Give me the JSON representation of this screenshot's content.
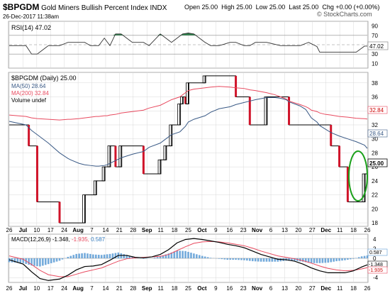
{
  "header": {
    "symbol": "$BPGDM",
    "name": "Gold Miners Bullish Percent Index",
    "exchange": "INDX",
    "date": "26-Dec-2017 11:38am",
    "open_label": "Open",
    "open": "25.00",
    "high_label": "High",
    "high": "25.00",
    "low_label": "Low",
    "low": "25.00",
    "last_label": "Last",
    "last": "25.00",
    "chg_label": "Chg",
    "chg": "+0.00 (+0.00%)",
    "watermark": "© StockCharts.com"
  },
  "colors": {
    "ma50": "#3a5a86",
    "ma200": "#e84a5f",
    "ohlc": "#000000",
    "down": "#d0142a",
    "rsi_fill": "#8a5a50",
    "rsi_fill_up": "#2e7d4a",
    "macd_hist": "#5b9bd5",
    "signal": "#e84a5f",
    "annotation": "#1aa01a",
    "grid": "#d8d8d8"
  },
  "rsi_panel": {
    "legend": "RSI(14) 47.02",
    "ticks": [
      "90",
      "70",
      "50",
      "30",
      "10"
    ],
    "last_label": "47.02"
  },
  "price_panel": {
    "legend_title": "$BPGDM (Daily) 25.00",
    "legend_ma50": "MA(50) 28.64",
    "legend_ma200": "MA(200) 32.84",
    "legend_volume": "Volume undef",
    "ticks": [
      "38",
      "36",
      "34",
      "32",
      "30",
      "28",
      "26",
      "24",
      "22",
      "20",
      "18"
    ],
    "last_price_label": "25.00",
    "ma200_label": "32.84",
    "ma50_label": "28.64"
  },
  "macd_panel": {
    "legend_name": "MACD(12,26,9)",
    "legend_macd": "-1.348,",
    "legend_signal": "-1.935,",
    "legend_hist": "0.587",
    "ticks": [
      "4",
      "2",
      "0",
      "-2",
      "-4"
    ],
    "hist_label": "0.587",
    "macd_label": "-1.348",
    "signal_label": "-1.935"
  },
  "x_axis": {
    "labels": [
      "26",
      "Jul",
      "10",
      "17",
      "24",
      "Aug",
      "7",
      "14",
      "21",
      "28",
      "Sep",
      "11",
      "18",
      "25",
      "Oct",
      "9",
      "16",
      "23",
      "Nov",
      "6",
      "13",
      "20",
      "27",
      "Dec",
      "11",
      "18",
      "26"
    ]
  },
  "chart_data": [
    {
      "type": "line",
      "panel": "RSI",
      "ylim": [
        0,
        100
      ],
      "reference_lines": [
        70,
        50,
        30
      ],
      "x_index": [
        0,
        6,
        8,
        10,
        14,
        18,
        21,
        27,
        29,
        32,
        34,
        36,
        38,
        40,
        44,
        48,
        50,
        54,
        58,
        62,
        64,
        66,
        70,
        72,
        75,
        79,
        81,
        84,
        86,
        88,
        92,
        97,
        99,
        104,
        107,
        110,
        111,
        115,
        118,
        121,
        124,
        127,
        128
      ],
      "series": [
        {
          "name": "RSI(14)",
          "values": [
            48,
            48,
            30,
            30,
            48,
            48,
            55,
            55,
            48,
            48,
            64,
            48,
            73,
            73,
            55,
            55,
            48,
            73,
            55,
            73,
            75,
            73,
            55,
            48,
            48,
            55,
            55,
            48,
            48,
            55,
            55,
            48,
            48,
            48,
            55,
            46,
            34,
            34,
            34,
            34,
            34,
            47,
            47
          ]
        }
      ]
    },
    {
      "type": "line",
      "panel": "price",
      "ylim": [
        17.5,
        39.5
      ],
      "x_index": [
        0,
        6,
        7,
        8,
        10,
        14,
        18,
        21,
        22,
        25,
        27,
        29,
        31,
        32,
        34,
        35,
        36,
        38,
        40,
        44,
        48,
        50,
        54,
        56,
        58,
        61,
        62,
        63,
        64,
        66,
        70,
        72,
        75,
        79,
        81,
        84,
        86,
        88,
        92,
        95,
        97,
        99,
        100,
        104,
        106,
        107,
        108,
        110,
        111,
        113,
        115,
        118,
        121,
        124,
        127,
        128
      ],
      "series": [
        {
          "name": "$BPGDM (Daily)",
          "values": [
            32,
            32,
            29,
            29,
            21,
            21,
            18,
            18,
            18,
            18,
            22,
            22,
            24,
            24,
            26,
            26,
            29,
            26,
            29,
            29,
            25,
            25,
            27,
            29,
            32,
            35,
            36,
            35,
            38,
            38,
            39,
            39,
            39,
            39,
            36,
            36,
            32,
            32,
            36,
            36,
            36,
            36,
            32,
            32,
            32,
            32,
            32,
            32,
            32,
            32,
            29,
            26,
            21,
            21,
            25,
            25
          ]
        },
        {
          "name": "MA(50)",
          "values": [
            32.5,
            32,
            31.6,
            31.2,
            30.6,
            29.4,
            28,
            27.2,
            27,
            26.5,
            26.3,
            26.2,
            26.1,
            26.1,
            26.2,
            26.3,
            26.5,
            26.9,
            27.3,
            27.8,
            28.2,
            28.8,
            29.4,
            30,
            30.6,
            31,
            31.4,
            31.8,
            32.4,
            32.8,
            33.3,
            33.8,
            34.3,
            34.6,
            34.9,
            35.2,
            35.4,
            35.6,
            35.9,
            35.9,
            35.8,
            35.6,
            35.3,
            34.7,
            34.2,
            33.6,
            33,
            32.4,
            31.9,
            31.4,
            30.9,
            30.4,
            30,
            29.6,
            29.1,
            28.64
          ]
        },
        {
          "name": "MA(200)",
          "values": [
            33.4,
            33.2,
            33.1,
            33,
            32.9,
            32.8,
            32.7,
            32.8,
            32.8,
            32.9,
            33,
            33.1,
            33.2,
            33.2,
            33.3,
            33.3,
            33.4,
            33.5,
            33.7,
            33.9,
            34.1,
            34.4,
            34.8,
            35.2,
            35.6,
            36,
            36.3,
            36.6,
            36.9,
            37.1,
            37.3,
            37.4,
            37.5,
            37.4,
            37.3,
            37.2,
            37,
            36.9,
            36.6,
            36.3,
            36,
            35.7,
            35.4,
            34.9,
            34.6,
            34.4,
            34.1,
            33.9,
            33.7,
            33.5,
            33.4,
            33.2,
            33.1,
            32.95,
            32.88,
            32.84
          ]
        }
      ]
    },
    {
      "type": "line",
      "panel": "MACD",
      "ylim": [
        -5,
        5
      ],
      "x_index": [
        0,
        5,
        8,
        11,
        14,
        18,
        21,
        24,
        27,
        30,
        33,
        36,
        39,
        42,
        45,
        48,
        51,
        54,
        57,
        60,
        63,
        66,
        69,
        72,
        75,
        78,
        81,
        84,
        87,
        90,
        93,
        96,
        99,
        102,
        105,
        108,
        111,
        114,
        117,
        120,
        123,
        126,
        128
      ],
      "series": [
        {
          "name": "MACD",
          "values": [
            -0.3,
            -1.2,
            -2.8,
            -4.2,
            -4.6,
            -4.3,
            -3.5,
            -2.4,
            -1.7,
            -1.6,
            -1.3,
            -0.4,
            0.6,
            0.6,
            0.2,
            0.1,
            0.3,
            0.8,
            1.8,
            3.2,
            3.9,
            4.1,
            3.9,
            3.6,
            3.3,
            2.9,
            2.6,
            2.2,
            1.5,
            0.8,
            0.3,
            -0.2,
            -0.3,
            -0.6,
            -1.2,
            -2,
            -2.6,
            -3,
            -3,
            -3,
            -2.6,
            -1.8,
            -1.348
          ]
        },
        {
          "name": "Signal",
          "values": [
            0.5,
            -0.2,
            -1.3,
            -2.5,
            -3.4,
            -3.8,
            -3.8,
            -3.3,
            -2.8,
            -2.4,
            -2,
            -1.3,
            -0.6,
            -0.1,
            0.1,
            0.2,
            0.3,
            0.4,
            0.8,
            1.6,
            2.4,
            3.1,
            3.4,
            3.5,
            3.4,
            3.2,
            2.9,
            2.6,
            2.1,
            1.5,
            1,
            0.5,
            0.2,
            -0.1,
            -0.5,
            -1,
            -1.6,
            -2.1,
            -2.4,
            -2.6,
            -2.5,
            -2.2,
            -1.935
          ]
        },
        {
          "name": "Histogram",
          "values": [
            -0.8,
            -1,
            -1.5,
            -1.7,
            -1.2,
            -0.5,
            0.3,
            0.9,
            1.1,
            0.8,
            0.7,
            0.9,
            1.2,
            0.7,
            0.1,
            -0.1,
            0,
            0.4,
            1,
            1.6,
            1.5,
            1,
            0.5,
            0.1,
            -0.1,
            -0.3,
            -0.3,
            -0.4,
            -0.6,
            -0.7,
            -0.7,
            -0.7,
            -0.5,
            -0.5,
            -0.7,
            -1,
            -1,
            -0.9,
            -0.6,
            -0.4,
            -0.1,
            0.4,
            0.587
          ]
        }
      ]
    }
  ]
}
